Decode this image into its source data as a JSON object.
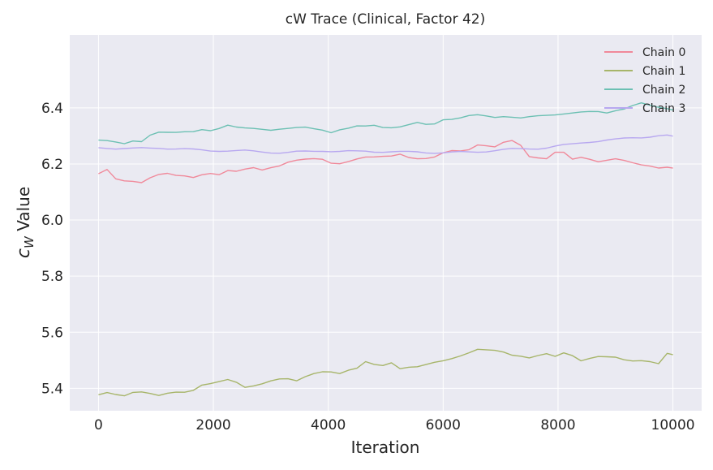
{
  "chart_data": {
    "type": "line",
    "title": "cW Trace (Clinical, Factor 42)",
    "xlabel": "Iteration",
    "ylabel_main": "c",
    "ylabel_sub": "W",
    "ylabel_rest": " Value",
    "xlim": [
      -500,
      10500
    ],
    "ylim": [
      5.32,
      6.66
    ],
    "xticks": [
      0,
      2000,
      4000,
      6000,
      8000,
      10000
    ],
    "yticks": [
      5.4,
      5.6,
      5.8,
      6.0,
      6.2,
      6.4
    ],
    "xtick_labels": [
      "0",
      "2000",
      "4000",
      "6000",
      "8000",
      "10000"
    ],
    "ytick_labels": [
      "5.4",
      "5.6",
      "5.8",
      "6.0",
      "6.2",
      "6.4"
    ],
    "grid": true,
    "legend_position": "top-right",
    "series": [
      {
        "name": "Chain 0",
        "color": "#f0899a",
        "x": [
          0,
          150,
          300,
          450,
          600,
          750,
          900,
          1050,
          1200,
          1350,
          1500,
          1650,
          1800,
          1950,
          2100,
          2250,
          2400,
          2550,
          2700,
          2850,
          3000,
          3150,
          3300,
          3450,
          3600,
          3750,
          3900,
          4050,
          4200,
          4350,
          4500,
          4650,
          4800,
          4950,
          5100,
          5250,
          5400,
          5550,
          5700,
          5850,
          6000,
          6150,
          6300,
          6450,
          6600,
          6750,
          6900,
          7050,
          7200,
          7350,
          7500,
          7650,
          7800,
          7950,
          8100,
          8250,
          8400,
          8550,
          8700,
          8850,
          9000,
          9150,
          9300,
          9450,
          9600,
          9750,
          9900,
          10000
        ],
        "y": [
          6.165,
          6.183,
          6.15,
          6.14,
          6.135,
          6.13,
          6.15,
          6.165,
          6.17,
          6.16,
          6.155,
          6.148,
          6.16,
          6.168,
          6.165,
          6.178,
          6.172,
          6.178,
          6.185,
          6.18,
          6.19,
          6.195,
          6.205,
          6.21,
          6.215,
          6.22,
          6.22,
          6.205,
          6.2,
          6.205,
          6.215,
          6.225,
          6.228,
          6.23,
          6.228,
          6.232,
          6.22,
          6.218,
          6.222,
          6.228,
          6.24,
          6.245,
          6.243,
          6.25,
          6.27,
          6.268,
          6.262,
          6.275,
          6.28,
          6.265,
          6.228,
          6.225,
          6.22,
          6.24,
          6.238,
          6.215,
          6.225,
          6.22,
          6.21,
          6.212,
          6.215,
          6.21,
          6.205,
          6.2,
          6.195,
          6.185,
          6.185,
          6.185
        ]
      },
      {
        "name": "Chain 1",
        "color": "#a7b56a",
        "x": [
          0,
          150,
          300,
          450,
          600,
          750,
          900,
          1050,
          1200,
          1350,
          1500,
          1650,
          1800,
          1950,
          2100,
          2250,
          2400,
          2550,
          2700,
          2850,
          3000,
          3150,
          3300,
          3450,
          3600,
          3750,
          3900,
          4050,
          4200,
          4350,
          4500,
          4650,
          4800,
          4950,
          5100,
          5250,
          5400,
          5550,
          5700,
          5850,
          6000,
          6150,
          6300,
          6450,
          6600,
          6750,
          6900,
          7050,
          7200,
          7350,
          7500,
          7650,
          7800,
          7950,
          8100,
          8250,
          8400,
          8550,
          8700,
          8850,
          9000,
          9150,
          9300,
          9450,
          9600,
          9750,
          9900,
          10000
        ],
        "y": [
          5.38,
          5.385,
          5.375,
          5.37,
          5.385,
          5.39,
          5.385,
          5.375,
          5.38,
          5.383,
          5.385,
          5.395,
          5.415,
          5.418,
          5.422,
          5.428,
          5.42,
          5.405,
          5.412,
          5.418,
          5.425,
          5.43,
          5.432,
          5.428,
          5.445,
          5.455,
          5.458,
          5.455,
          5.45,
          5.465,
          5.475,
          5.498,
          5.485,
          5.478,
          5.488,
          5.47,
          5.478,
          5.48,
          5.485,
          5.49,
          5.495,
          5.505,
          5.518,
          5.53,
          5.54,
          5.535,
          5.532,
          5.528,
          5.52,
          5.518,
          5.51,
          5.515,
          5.52,
          5.512,
          5.528,
          5.52,
          5.5,
          5.505,
          5.51,
          5.51,
          5.512,
          5.505,
          5.5,
          5.498,
          5.492,
          5.485,
          5.525,
          5.52
        ]
      },
      {
        "name": "Chain 2",
        "color": "#6cc0b3",
        "x": [
          0,
          150,
          300,
          450,
          600,
          750,
          900,
          1050,
          1200,
          1350,
          1500,
          1650,
          1800,
          1950,
          2100,
          2250,
          2400,
          2550,
          2700,
          2850,
          3000,
          3150,
          3300,
          3450,
          3600,
          3750,
          3900,
          4050,
          4200,
          4350,
          4500,
          4650,
          4800,
          4950,
          5100,
          5250,
          5400,
          5550,
          5700,
          5850,
          6000,
          6150,
          6300,
          6450,
          6600,
          6750,
          6900,
          7050,
          7200,
          7350,
          7500,
          7650,
          7800,
          7950,
          8100,
          8250,
          8400,
          8550,
          8700,
          8850,
          9000,
          9150,
          9300,
          9450,
          9600,
          9750,
          9900,
          10000
        ],
        "y": [
          6.282,
          6.28,
          6.278,
          6.275,
          6.285,
          6.28,
          6.3,
          6.31,
          6.312,
          6.315,
          6.318,
          6.316,
          6.32,
          6.315,
          6.325,
          6.34,
          6.335,
          6.33,
          6.325,
          6.32,
          6.318,
          6.325,
          6.33,
          6.332,
          6.33,
          6.322,
          6.318,
          6.312,
          6.325,
          6.33,
          6.335,
          6.332,
          6.335,
          6.33,
          6.332,
          6.335,
          6.34,
          6.345,
          6.338,
          6.342,
          6.36,
          6.362,
          6.365,
          6.37,
          6.372,
          6.37,
          6.368,
          6.372,
          6.368,
          6.362,
          6.365,
          6.37,
          6.375,
          6.378,
          6.38,
          6.38,
          6.382,
          6.385,
          6.388,
          6.385,
          6.392,
          6.395,
          6.405,
          6.415,
          6.41,
          6.405,
          6.4,
          6.392
        ]
      },
      {
        "name": "Chain 3",
        "color": "#b8a8f0",
        "x": [
          0,
          150,
          300,
          450,
          600,
          750,
          900,
          1050,
          1200,
          1350,
          1500,
          1650,
          1800,
          1950,
          2100,
          2250,
          2400,
          2550,
          2700,
          2850,
          3000,
          3150,
          3300,
          3450,
          3600,
          3750,
          3900,
          4050,
          4200,
          4350,
          4500,
          4650,
          4800,
          4950,
          5100,
          5250,
          5400,
          5550,
          5700,
          5850,
          6000,
          6150,
          6300,
          6450,
          6600,
          6750,
          6900,
          7050,
          7200,
          7350,
          7500,
          7650,
          7800,
          7950,
          8100,
          8250,
          8400,
          8550,
          8700,
          8850,
          9000,
          9150,
          9300,
          9450,
          9600,
          9750,
          9900,
          10000
        ],
        "y": [
          6.258,
          6.258,
          6.256,
          6.255,
          6.254,
          6.255,
          6.256,
          6.258,
          6.256,
          6.254,
          6.252,
          6.25,
          6.249,
          6.248,
          6.248,
          6.247,
          6.246,
          6.246,
          6.245,
          6.244,
          6.242,
          6.24,
          6.24,
          6.242,
          6.244,
          6.246,
          6.248,
          6.246,
          6.244,
          6.244,
          6.244,
          6.246,
          6.245,
          6.244,
          6.243,
          6.242,
          6.242,
          6.243,
          6.242,
          6.241,
          6.24,
          6.24,
          6.241,
          6.242,
          6.244,
          6.246,
          6.248,
          6.25,
          6.252,
          6.253,
          6.255,
          6.256,
          6.258,
          6.262,
          6.266,
          6.27,
          6.276,
          6.28,
          6.282,
          6.284,
          6.286,
          6.29,
          6.294,
          6.296,
          6.298,
          6.3,
          6.3,
          6.299
        ]
      }
    ]
  }
}
